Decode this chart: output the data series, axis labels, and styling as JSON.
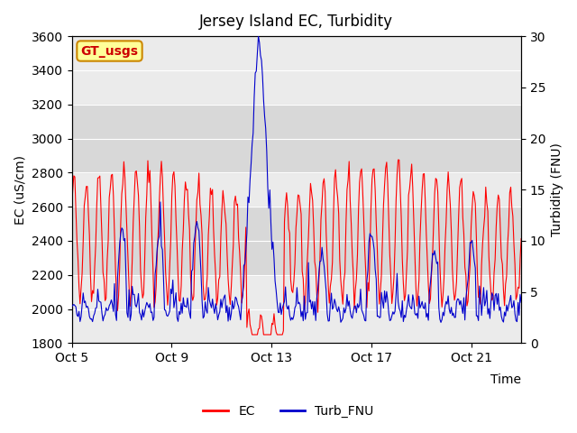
{
  "title": "Jersey Island EC, Turbidity",
  "xlabel": "Time",
  "ylabel_left": "EC (uS/cm)",
  "ylabel_right": "Turbidity (FNU)",
  "ylim_left": [
    1800,
    3600
  ],
  "ylim_right": [
    0,
    30
  ],
  "yticks_left": [
    1800,
    2000,
    2200,
    2400,
    2600,
    2800,
    3000,
    3200,
    3400,
    3600
  ],
  "yticks_right": [
    0,
    5,
    10,
    15,
    20,
    25,
    30
  ],
  "xtick_labels": [
    "Oct 5",
    "Oct 9",
    "Oct 13",
    "Oct 17",
    "Oct 21"
  ],
  "xtick_positions": [
    0,
    4,
    8,
    12,
    16
  ],
  "ec_color": "#FF0000",
  "turb_color": "#0000CC",
  "background_color": "#FFFFFF",
  "plot_bg_color": "#EBEBEB",
  "band_light_color": "#D8D8D8",
  "annotation_text": "GT_usgs",
  "annotation_bg": "#FFFF99",
  "annotation_border": "#CC8800",
  "legend_ec": "EC",
  "legend_turb": "Turb_FNU",
  "n_points": 432,
  "seed": 42,
  "t_max": 18.0
}
